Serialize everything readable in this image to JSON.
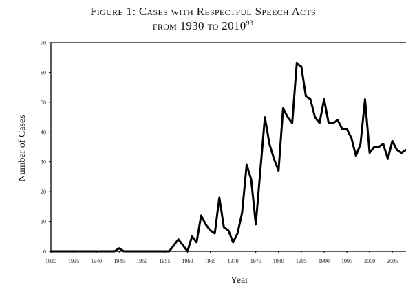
{
  "title": {
    "line1": "Figure 1: Cases with Respectful Speech Acts",
    "line2": "from 1930 to 2010",
    "footnote": "93"
  },
  "chart_data": {
    "type": "line",
    "xlabel": "Year",
    "ylabel": "Number of Cases",
    "xlim": [
      1930,
      2008
    ],
    "ylim": [
      0,
      70
    ],
    "x_ticks": [
      1930,
      1935,
      1940,
      1945,
      1950,
      1955,
      1960,
      1965,
      1970,
      1975,
      1980,
      1985,
      1990,
      1995,
      2000,
      2005
    ],
    "y_ticks": [
      0,
      10,
      20,
      30,
      40,
      50,
      60,
      70
    ],
    "grid": false,
    "legend": "none",
    "series": [
      {
        "color": "#000000",
        "x": [
          1930,
          1931,
          1932,
          1933,
          1934,
          1935,
          1936,
          1937,
          1938,
          1939,
          1940,
          1941,
          1942,
          1943,
          1944,
          1945,
          1946,
          1947,
          1948,
          1949,
          1950,
          1951,
          1952,
          1953,
          1954,
          1955,
          1956,
          1957,
          1958,
          1959,
          1960,
          1961,
          1962,
          1963,
          1964,
          1965,
          1966,
          1967,
          1968,
          1969,
          1970,
          1971,
          1972,
          1973,
          1974,
          1975,
          1976,
          1977,
          1978,
          1979,
          1980,
          1981,
          1982,
          1983,
          1984,
          1985,
          1986,
          1987,
          1988,
          1989,
          1990,
          1991,
          1992,
          1993,
          1994,
          1995,
          1996,
          1997,
          1998,
          1999,
          2000,
          2001,
          2002,
          2003,
          2004,
          2005,
          2006,
          2007,
          2008
        ],
        "values": [
          0,
          0,
          0,
          0,
          0,
          0,
          0,
          0,
          0,
          0,
          0,
          0,
          0,
          0,
          0,
          1,
          0,
          0,
          0,
          0,
          0,
          0,
          0,
          0,
          0,
          0,
          0,
          2,
          4,
          2,
          0,
          5,
          3,
          12,
          9,
          7,
          6,
          18,
          8,
          7,
          3,
          6,
          13,
          29,
          24,
          9,
          27,
          45,
          36,
          31,
          27,
          48,
          45,
          43,
          63,
          62,
          52,
          51,
          45,
          43,
          51,
          43,
          43,
          44,
          41,
          41,
          38,
          32,
          36,
          51,
          33,
          35,
          35,
          36,
          31,
          37,
          34,
          33,
          34
        ]
      }
    ]
  }
}
